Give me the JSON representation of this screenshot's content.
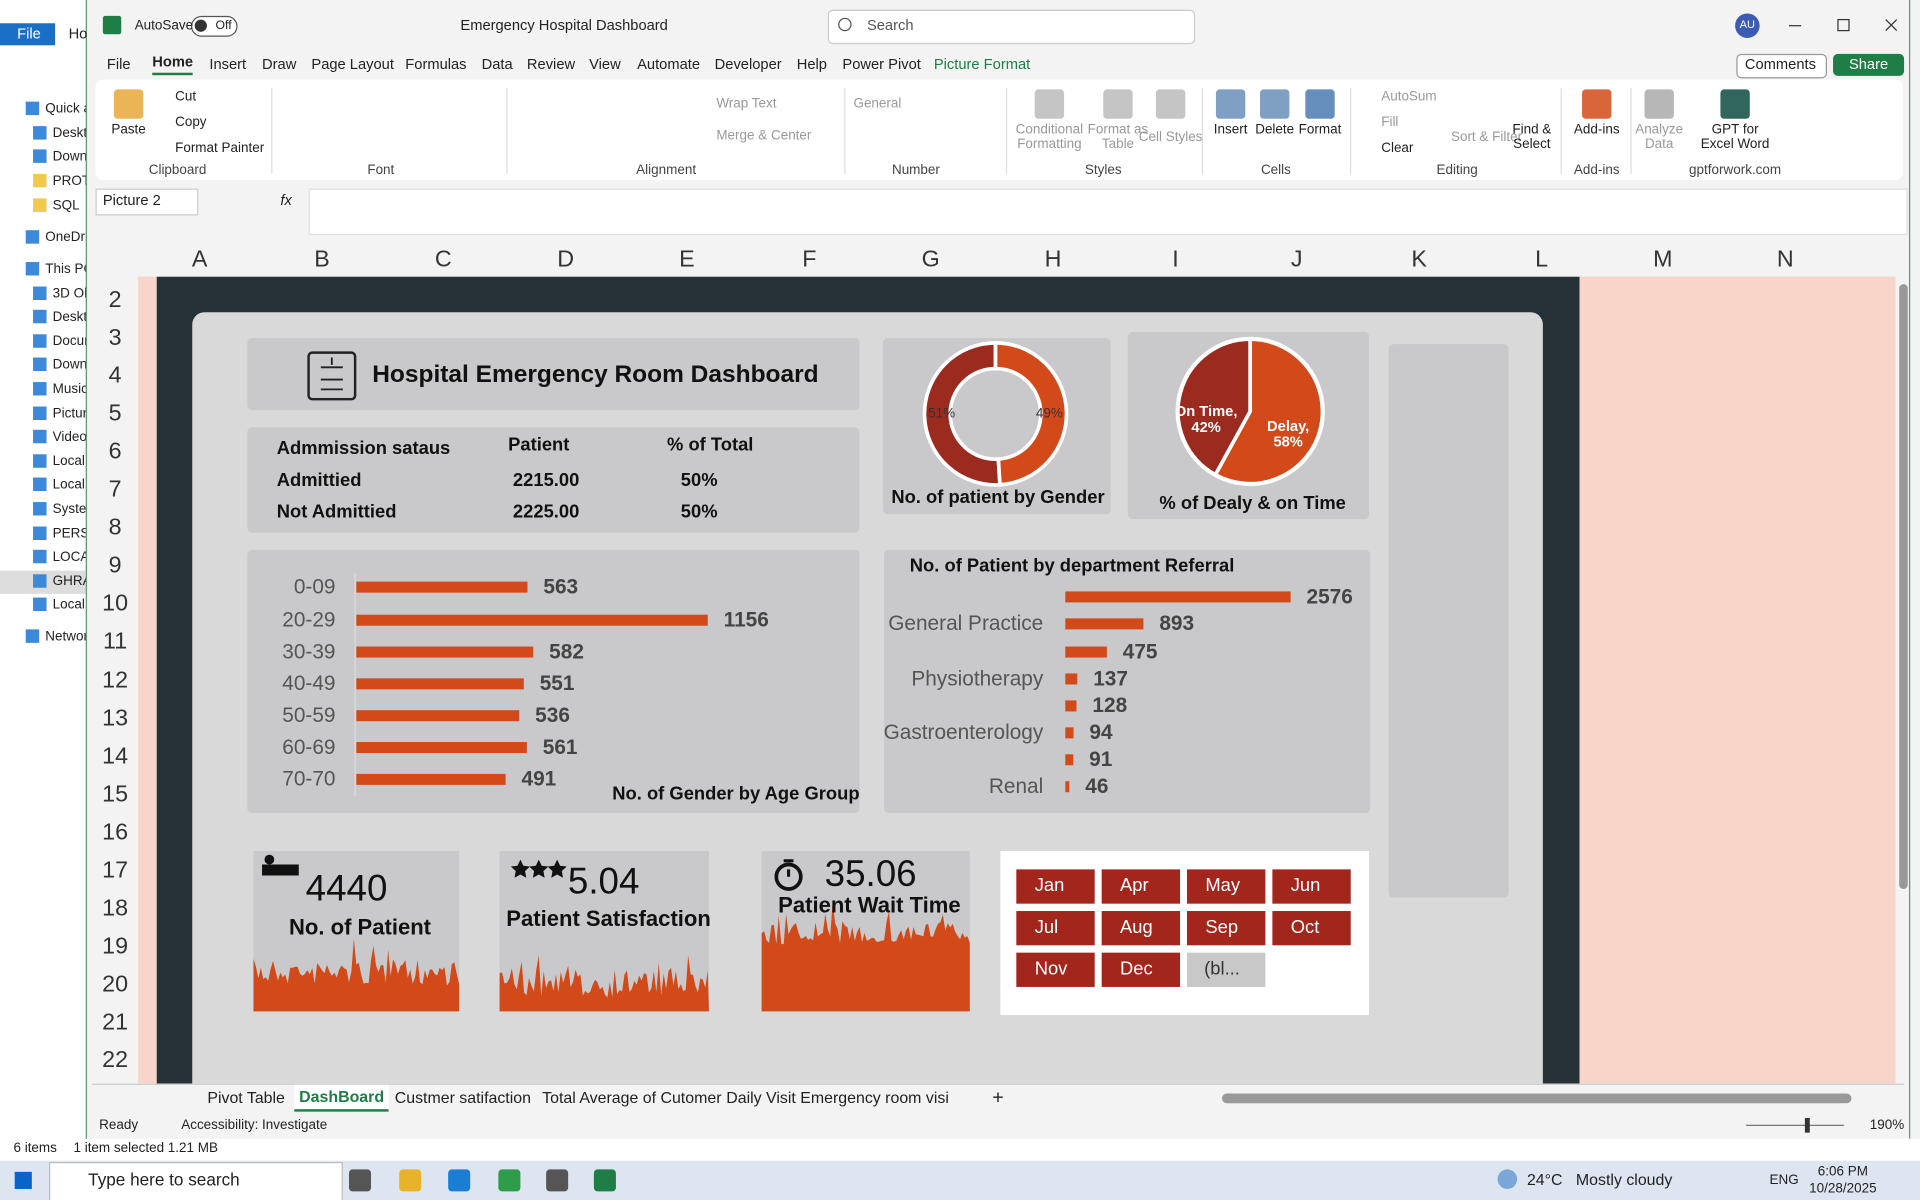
{
  "explorer": {
    "file_tab": "File",
    "home_tab": "Ho",
    "nav": [
      "Quick a",
      "Deskto",
      "Downl",
      "PROTF",
      "SQL",
      "OneDriv",
      "This PC",
      "3D Obj",
      "Deskto",
      "Docum",
      "Downl",
      "Music",
      "Picture",
      "Videos",
      "Local D",
      "Local D",
      "System",
      "PERSN",
      "LOCAL",
      "GHRAE",
      "Local D",
      "Network"
    ],
    "status_items": "6 items",
    "status_selected": "1 item selected  1.21 MB"
  },
  "excel": {
    "autosave": "AutoSave",
    "autosave_state": "Off",
    "title": "Emergency Hospital Dashboard",
    "search": "Search",
    "user": "AU",
    "tabs": [
      "File",
      "Home",
      "Insert",
      "Draw",
      "Page Layout",
      "Formulas",
      "Data",
      "Review",
      "View",
      "Automate",
      "Developer",
      "Help",
      "Power Pivot",
      "Picture Format"
    ],
    "comments": "Comments",
    "share": "Share",
    "ribbon_items": [
      "Paste",
      "Cut",
      "Copy",
      "Format Painter",
      "Wrap Text",
      "Merge & Center",
      "General",
      "Conditional Formatting",
      "Format as Table",
      "Cell Styles",
      "Insert",
      "Delete",
      "Format",
      "AutoSum",
      "Fill",
      "Clear",
      "Sort & Filter",
      "Find & Select",
      "Add-ins",
      "Analyze Data",
      "GPT for Excel Word"
    ],
    "ribbon_groups": [
      "Clipboard",
      "Font",
      "Alignment",
      "Number",
      "Styles",
      "Cells",
      "Editing",
      "Add-ins",
      "gptforwork.com"
    ],
    "name_box": "Picture 2",
    "fx": "fx",
    "columns": [
      "A",
      "B",
      "C",
      "D",
      "E",
      "F",
      "G",
      "H",
      "I",
      "J",
      "K",
      "L",
      "M",
      "N"
    ],
    "rows": [
      2,
      3,
      4,
      5,
      6,
      7,
      8,
      9,
      10,
      11,
      12,
      13,
      14,
      15,
      16,
      17,
      18,
      19,
      20,
      21,
      22
    ],
    "sheets": [
      "Pivot Table",
      "DashBoard",
      "Custmer satifaction",
      "Total Average of Cutomer",
      "Daily Visit Emergency room visi"
    ],
    "new_sheet": "+",
    "status": {
      "ready": "Ready",
      "accessibility": "Accessibility: Investigate",
      "zoom": "190%"
    }
  },
  "dashboard": {
    "title": "Hospital Emergency Room Dashboard",
    "admission": {
      "headers": [
        "Admmission sataus",
        "Patient",
        "% of Total"
      ],
      "rows": [
        [
          "Admittied",
          "2215.00",
          "50%"
        ],
        [
          "Not Admittied",
          "2225.00",
          "50%"
        ]
      ]
    },
    "gender_chart": {
      "type": "donut",
      "title": "No. of patient by Gender",
      "values": [
        51,
        49
      ],
      "value_labels": [
        "51%",
        "49%"
      ],
      "colors": [
        "#9b2a1f",
        "#d24a19"
      ]
    },
    "delay_chart": {
      "type": "pie",
      "title": "% of Dealy & on Time",
      "values": [
        42,
        58
      ],
      "value_labels": [
        "On Time, 42%",
        "Delay, 58%"
      ],
      "colors": [
        "#9b2a1f",
        "#d24a19"
      ]
    },
    "age_chart": {
      "type": "bar",
      "title": "No. of Gender by Age Group",
      "categories": [
        "0-09",
        "20-29",
        "30-39",
        "40-49",
        "50-59",
        "60-69",
        "70-70"
      ],
      "values": [
        563,
        1156,
        582,
        551,
        536,
        561,
        491
      ],
      "color": "#d24a19"
    },
    "dept_chart": {
      "type": "bar",
      "title": "No. of Patient by department Referral",
      "categories": [
        null,
        "General Practice",
        null,
        "Physiotherapy",
        null,
        "Gastroenterology",
        null,
        "Renal"
      ],
      "values": [
        2576,
        893,
        475,
        137,
        128,
        94,
        91,
        46
      ],
      "color": "#d24a19"
    },
    "kpis": [
      {
        "value": 4440,
        "label": "No. of Patient"
      },
      {
        "value": 5.04,
        "label": "Patient Satisfaction"
      },
      {
        "value": 35.06,
        "label": "Patient Wait Time"
      }
    ],
    "months": [
      "Jan",
      "Apr",
      "May",
      "Jun",
      "Jul",
      "Aug",
      "Sep",
      "Oct",
      "Nov",
      "Dec",
      "(bl..."
    ]
  },
  "taskbar": {
    "search": "Type here to search",
    "temp": "24°C",
    "weather": "Mostly cloudy",
    "lang": "ENG",
    "time": "6:06 PM",
    "date": "10/28/2025"
  }
}
